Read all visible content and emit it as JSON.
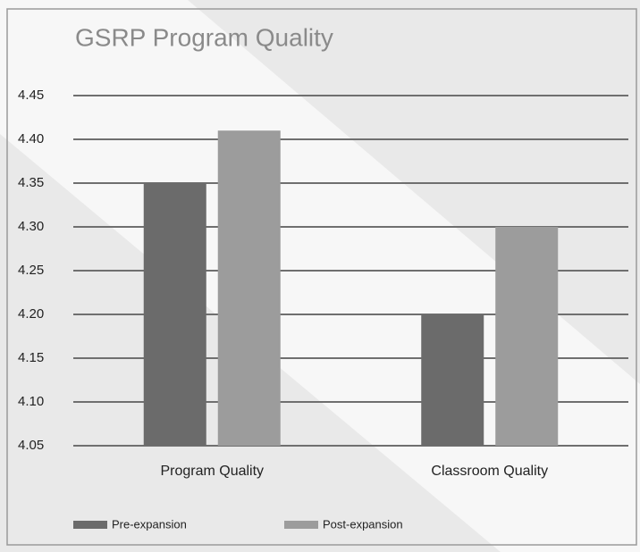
{
  "chart_data": {
    "type": "bar",
    "title": "GSRP Program Quality",
    "categories": [
      "Program Quality",
      "Classroom Quality"
    ],
    "series": [
      {
        "name": "Pre-expansion",
        "color": "#6b6b6b",
        "values": [
          4.35,
          4.2
        ]
      },
      {
        "name": "Post-expansion",
        "color": "#9c9c9c",
        "values": [
          4.41,
          4.3
        ]
      }
    ],
    "ylim": [
      4.05,
      4.45
    ],
    "yticks": [
      4.05,
      {
        "value": 4.1,
        "label": "4.10"
      },
      4.15,
      {
        "value": 4.2,
        "label": "4.20"
      },
      4.25,
      {
        "value": 4.3,
        "label": "4.30"
      },
      4.35,
      {
        "value": 4.4,
        "label": "4.40"
      },
      4.45
    ],
    "grid": true,
    "legend": "bottom"
  }
}
